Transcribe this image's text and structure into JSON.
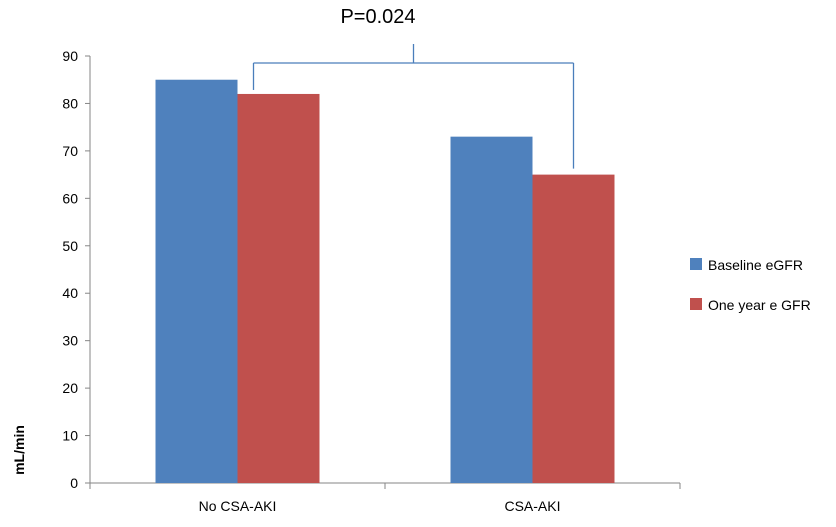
{
  "chart_data": {
    "type": "bar",
    "categories": [
      "No CSA-AKI",
      "CSA-AKI"
    ],
    "series": [
      {
        "name": "Baseline eGFR",
        "values": [
          85,
          73
        ],
        "color": "#4F81BD"
      },
      {
        "name": "One year e GFR",
        "values": [
          82,
          65
        ],
        "color": "#C0504D"
      }
    ],
    "ylabel": "mL/min",
    "ylim": [
      0,
      90
    ],
    "yticks": [
      0,
      10,
      20,
      30,
      40,
      50,
      60,
      70,
      80,
      90
    ],
    "grid": false,
    "legend_position": "right",
    "annotation": {
      "text": "P=0.024",
      "bracket_color": "#4A7EBB",
      "connects": [
        "No CSA-AKI / One year e GFR",
        "CSA-AKI / One year e GFR"
      ]
    }
  }
}
